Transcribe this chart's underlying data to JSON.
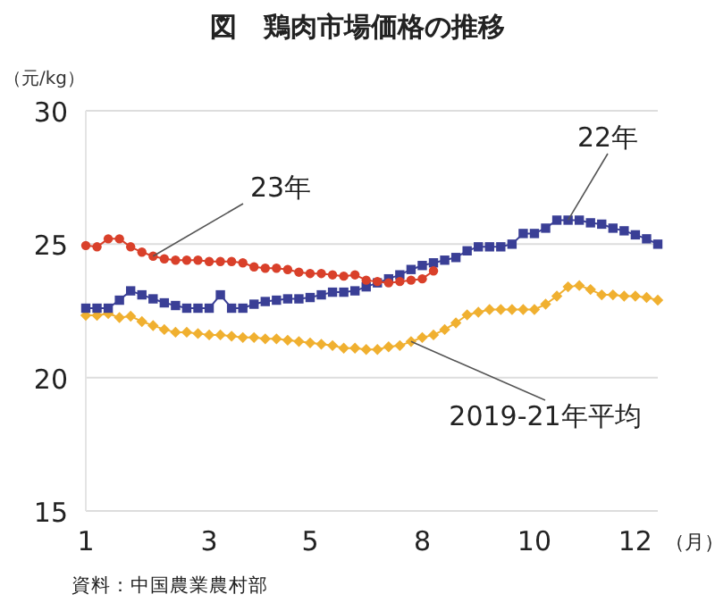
{
  "chart_data": {
    "type": "line",
    "title": "図　鶏肉市場価格の推移",
    "ylabel": "（元/kg）",
    "xlabel": "（月）",
    "annotations": [
      "資料：中国農業農村部"
    ],
    "categories": [
      "1",
      null,
      null,
      null,
      null,
      null,
      null,
      null,
      null,
      null,
      null,
      "3",
      null,
      null,
      null,
      null,
      null,
      null,
      null,
      null,
      "5",
      null,
      null,
      null,
      null,
      null,
      null,
      null,
      null,
      null,
      "8",
      null,
      null,
      null,
      null,
      null,
      null,
      null,
      null,
      null,
      "10",
      null,
      null,
      null,
      null,
      null,
      null,
      null,
      null,
      "12",
      null,
      null
    ],
    "ylim": [
      15,
      30
    ],
    "yticks": [
      15,
      20,
      25,
      30
    ],
    "grid": "y",
    "legend": false,
    "line_style": "solid",
    "series": [
      {
        "name": "23年",
        "color": "#d9402a",
        "marker": "circle",
        "values": [
          24.95,
          24.9,
          25.2,
          25.2,
          24.9,
          24.7,
          24.55,
          24.45,
          24.4,
          24.4,
          24.4,
          24.35,
          24.35,
          24.35,
          24.3,
          24.15,
          24.1,
          24.1,
          24.05,
          23.95,
          23.9,
          23.9,
          23.85,
          23.8,
          23.85,
          23.65,
          23.6,
          23.55,
          23.6,
          23.65,
          23.7,
          24.0,
          null,
          null,
          null,
          null,
          null,
          null,
          null,
          null,
          null,
          null,
          null,
          null,
          null,
          null,
          null,
          null,
          null,
          null,
          null,
          null
        ]
      },
      {
        "name": "22年",
        "color": "#3a3f96",
        "marker": "square",
        "values": [
          22.6,
          22.6,
          22.6,
          22.9,
          23.25,
          23.1,
          22.95,
          22.8,
          22.7,
          22.6,
          22.6,
          22.6,
          23.1,
          22.6,
          22.6,
          22.75,
          22.85,
          22.9,
          22.95,
          22.95,
          23.0,
          23.1,
          23.2,
          23.2,
          23.25,
          23.4,
          23.55,
          23.7,
          23.85,
          24.05,
          24.2,
          24.3,
          24.4,
          24.5,
          24.75,
          24.9,
          24.9,
          24.9,
          25.0,
          25.4,
          25.4,
          25.6,
          25.9,
          25.9,
          25.9,
          25.8,
          25.75,
          25.6,
          25.5,
          25.35,
          25.2,
          25.0
        ]
      },
      {
        "name": "2019-21年平均",
        "color": "#f0b030",
        "marker": "diamond",
        "values": [
          22.33,
          22.33,
          22.4,
          22.25,
          22.3,
          22.1,
          21.95,
          21.8,
          21.7,
          21.7,
          21.65,
          21.6,
          21.6,
          21.55,
          21.5,
          21.5,
          21.45,
          21.45,
          21.4,
          21.35,
          21.3,
          21.25,
          21.2,
          21.1,
          21.1,
          21.05,
          21.05,
          21.15,
          21.2,
          21.35,
          21.5,
          21.6,
          21.8,
          22.05,
          22.35,
          22.45,
          22.55,
          22.55,
          22.55,
          22.55,
          22.55,
          22.75,
          23.05,
          23.4,
          23.45,
          23.3,
          23.1,
          23.1,
          23.05,
          23.05,
          23.0,
          22.9
        ]
      }
    ]
  }
}
